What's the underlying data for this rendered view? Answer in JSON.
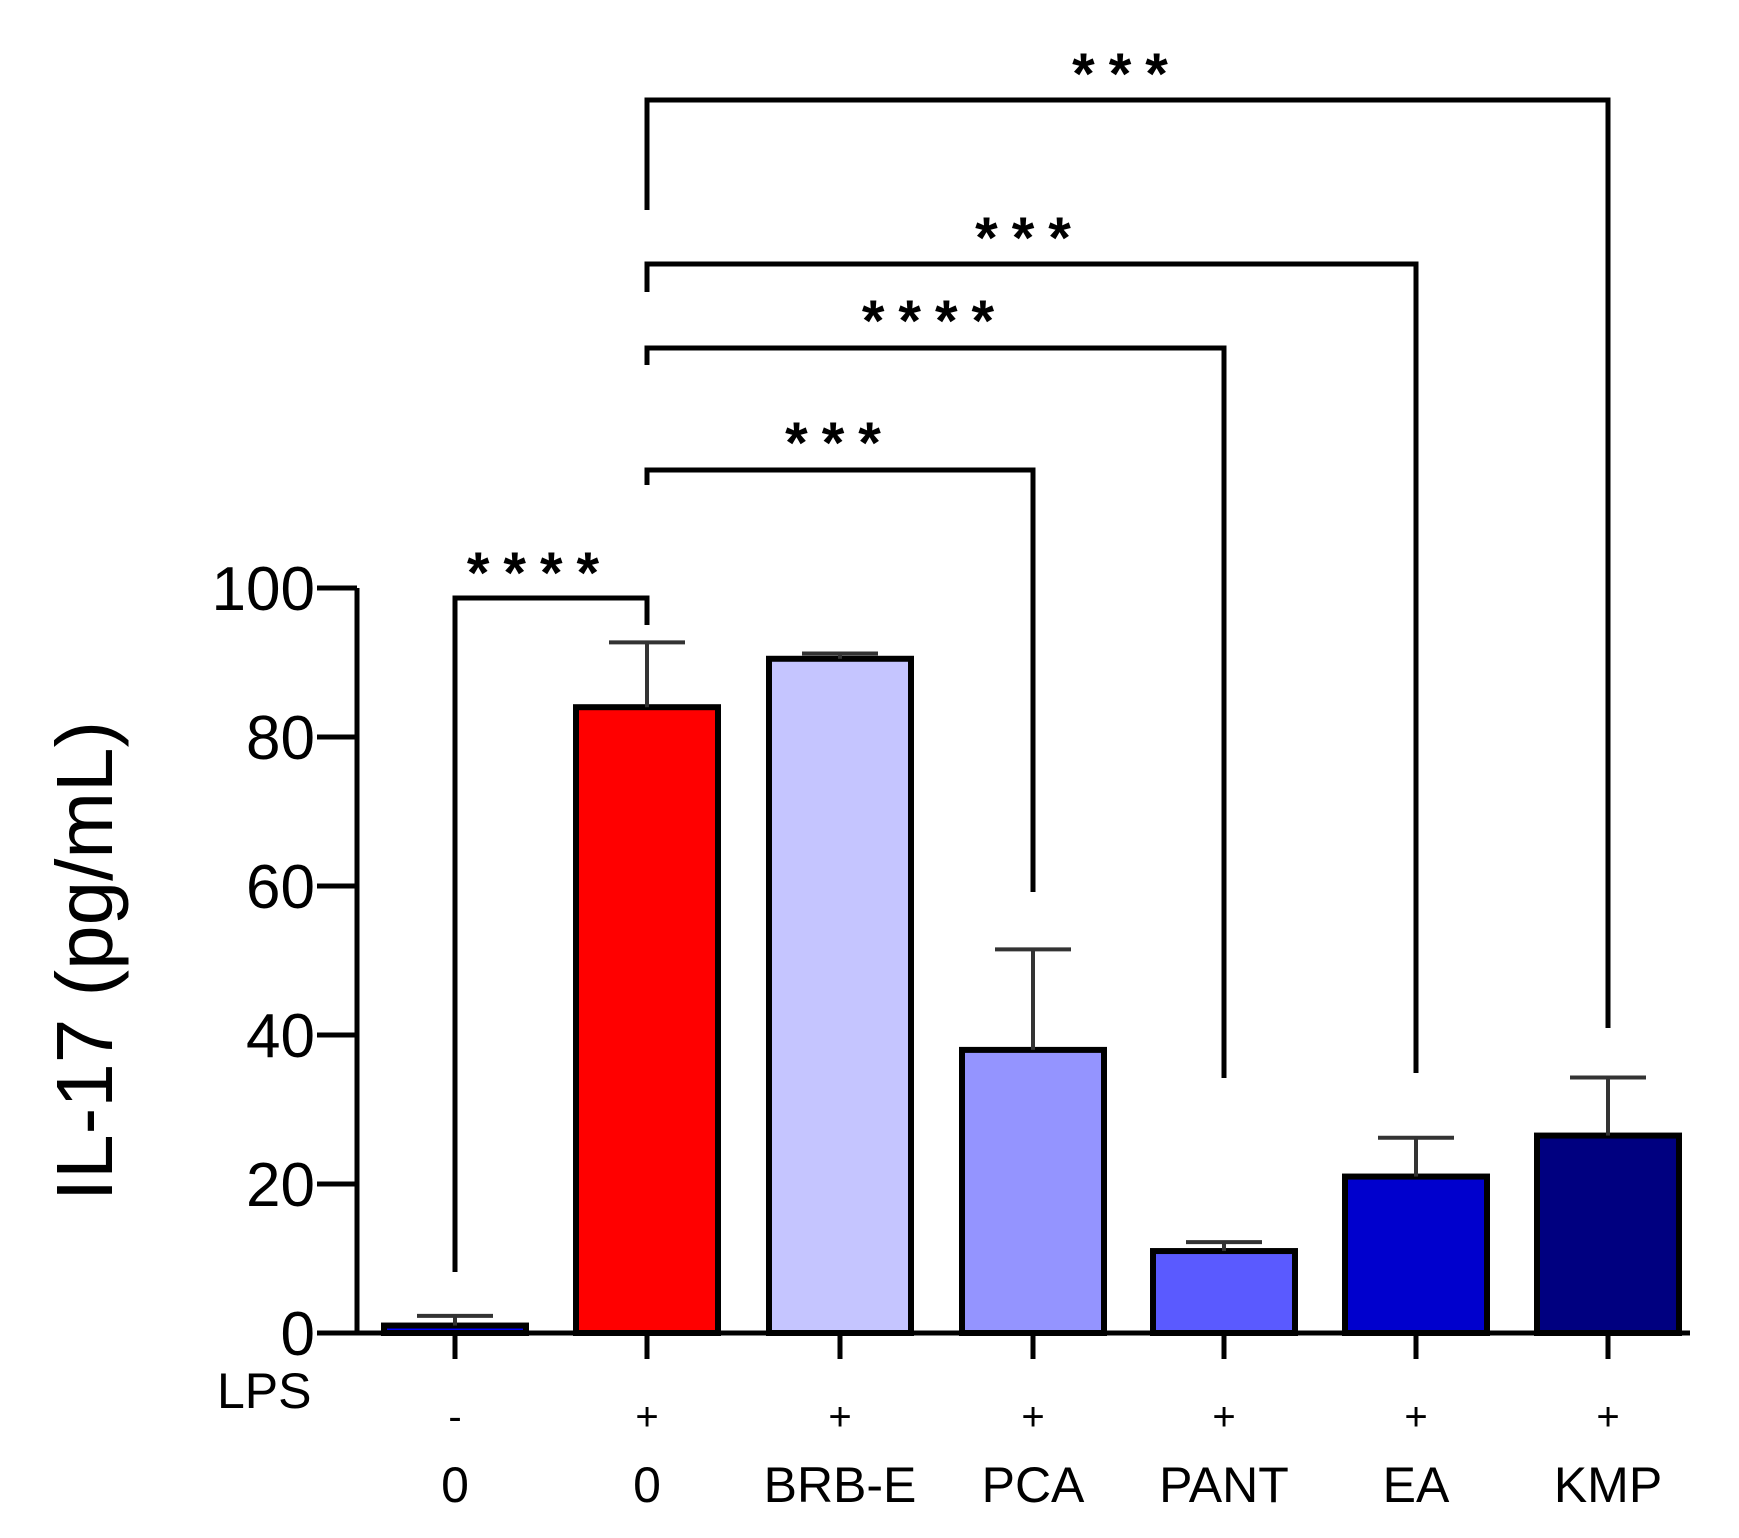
{
  "chart_data": {
    "type": "bar",
    "title": "",
    "ylabel": "IL-17 (pg/mL)",
    "xlabel": "",
    "ylim": [
      0,
      100
    ],
    "yticks": [
      0,
      20,
      40,
      60,
      80,
      100
    ],
    "categories": [
      "0",
      "0",
      "BRB-E",
      "PCA",
      "PANT",
      "EA",
      "KMP"
    ],
    "lps_row_label": "LPS",
    "lps": [
      "-",
      "+",
      "+",
      "+",
      "+",
      "+",
      "+"
    ],
    "values": [
      1,
      84,
      90.5,
      38,
      11,
      21,
      26.5
    ],
    "errors": [
      1.3,
      8.7,
      0.7,
      13.5,
      1.2,
      5.2,
      7.8
    ],
    "colors": [
      "#0000ff",
      "#ff0000",
      "#c5c5ff",
      "#9494ff",
      "#5a5aff",
      "#0000cd",
      "#000080"
    ],
    "significance": [
      {
        "from": 0,
        "to": 1,
        "label": "****"
      },
      {
        "from": 1,
        "to": 3,
        "label": "***"
      },
      {
        "from": 1,
        "to": 4,
        "label": "****"
      },
      {
        "from": 1,
        "to": 5,
        "label": "***"
      },
      {
        "from": 1,
        "to": 6,
        "label": "***"
      }
    ]
  }
}
